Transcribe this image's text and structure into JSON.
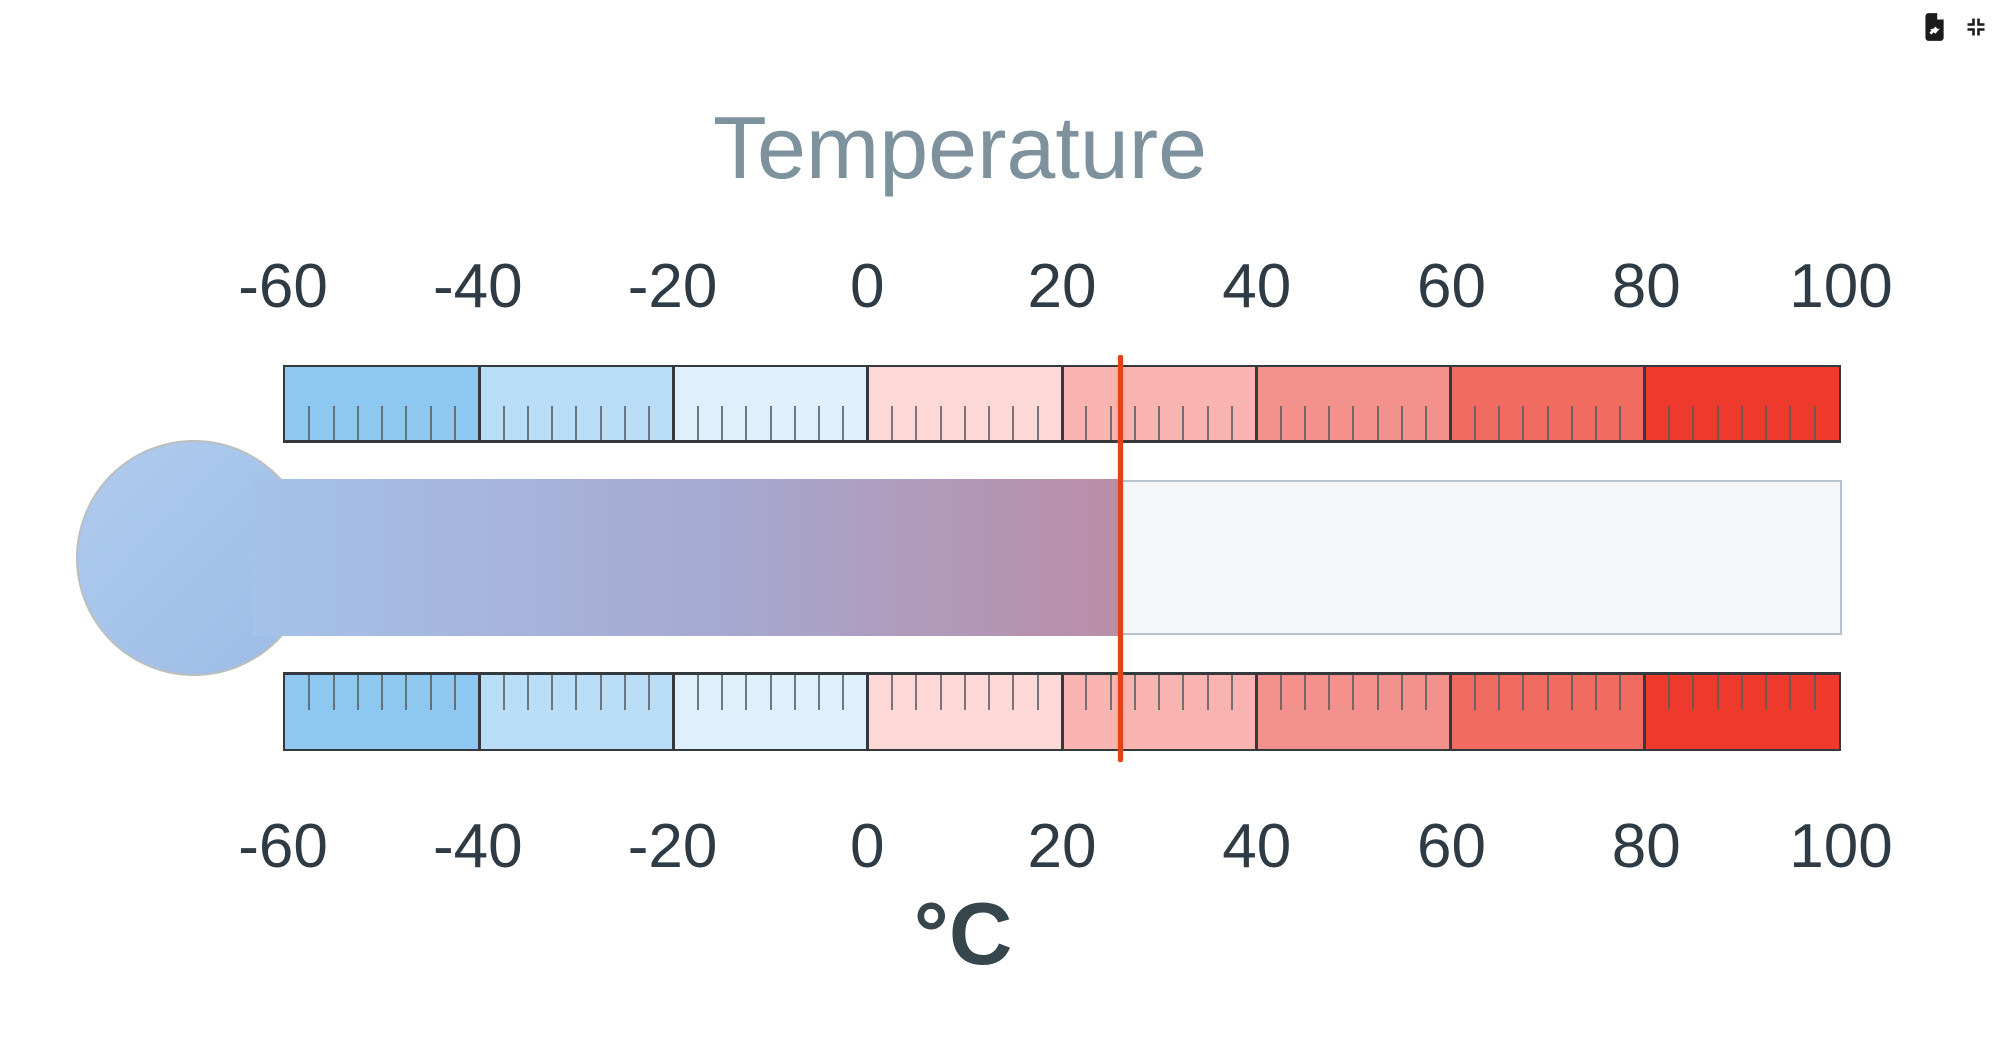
{
  "window": {
    "corner_icons": [
      {
        "name": "export-file-icon",
        "meaning": "export chart"
      },
      {
        "name": "compress-icon",
        "meaning": "collapse / exit fullscreen"
      }
    ]
  },
  "gauge": {
    "title": "Temperature",
    "unit_label": "°C",
    "value": 26,
    "colors": {
      "title_text": "#7d929d",
      "axis_label_text": "#2e3b44",
      "bar_border": "#34393d",
      "minor_tick": "#565b5f",
      "indicator_line": "#e1421b",
      "tube_empty_fill": "#f5f6f7",
      "tube_border": "#b7c3cd",
      "fluid_gradient_start": "#a5c2ea",
      "fluid_gradient_end": "#ba8da7",
      "bulb_fill": "#a5c3ea",
      "bulb_border": "#bbbebf",
      "icon_color": "#1d1d1d"
    }
  },
  "chart_data": {
    "type": "linear-gauge",
    "title": "Temperature",
    "xlabel": "°C",
    "value": 26,
    "axis": {
      "min": -60,
      "max": 100,
      "major_tick_interval": 20,
      "major_ticks": [
        -60,
        -40,
        -20,
        0,
        20,
        40,
        60,
        80,
        100
      ],
      "tick_labels": [
        "-60",
        "-40",
        "-20",
        "0",
        "20",
        "40",
        "60",
        "80",
        "100"
      ],
      "minor_divisions_per_major": 8,
      "axes_shown": [
        "top",
        "bottom"
      ],
      "grid": false,
      "legend": false
    },
    "bands": [
      {
        "from": -60,
        "to": -40,
        "color": "#8ec8f1"
      },
      {
        "from": -40,
        "to": -20,
        "color": "#b9ddf6"
      },
      {
        "from": -20,
        "to": 0,
        "color": "#def0fb"
      },
      {
        "from": 0,
        "to": 20,
        "color": "#fcd8d6"
      },
      {
        "from": 20,
        "to": 40,
        "color": "#f9b3b0"
      },
      {
        "from": 40,
        "to": 60,
        "color": "#f3928c"
      },
      {
        "from": 60,
        "to": 80,
        "color": "#f06b60"
      },
      {
        "from": 80,
        "to": 100,
        "color": "#ee3a2c"
      }
    ]
  }
}
